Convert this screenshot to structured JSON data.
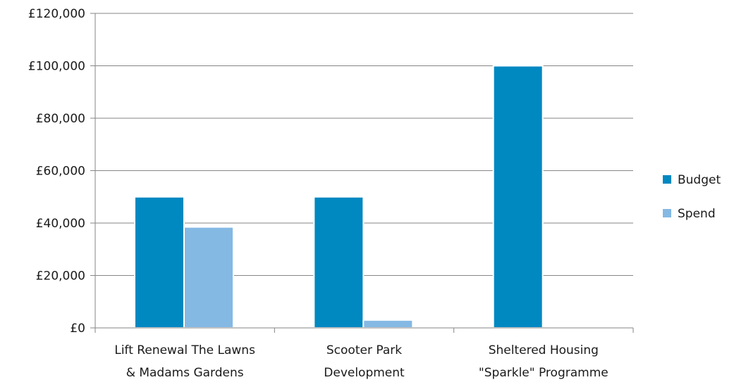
{
  "chart_data": {
    "type": "bar",
    "categories": [
      [
        "Lift Renewal The Lawns",
        "& Madams Gardens"
      ],
      [
        "Scooter Park",
        "Development"
      ],
      [
        "Sheltered Housing",
        "\"Sparkle\" Programme"
      ]
    ],
    "series": [
      {
        "name": "Budget",
        "values": [
          50000,
          50000,
          100000
        ],
        "color": "#0088c1"
      },
      {
        "name": "Spend",
        "values": [
          38500,
          3000,
          0
        ],
        "color": "#84b9e4"
      }
    ],
    "ylim": [
      0,
      120000
    ],
    "yticks": [
      0,
      20000,
      40000,
      60000,
      80000,
      100000,
      120000
    ],
    "ytick_labels": [
      "£0",
      "£20,000",
      "£40,000",
      "£60,000",
      "£80,000",
      "£100,000",
      "£120,000"
    ],
    "grid": true,
    "legend_position": "right",
    "gridline_color": "#868686",
    "axis_color": "#868686"
  }
}
